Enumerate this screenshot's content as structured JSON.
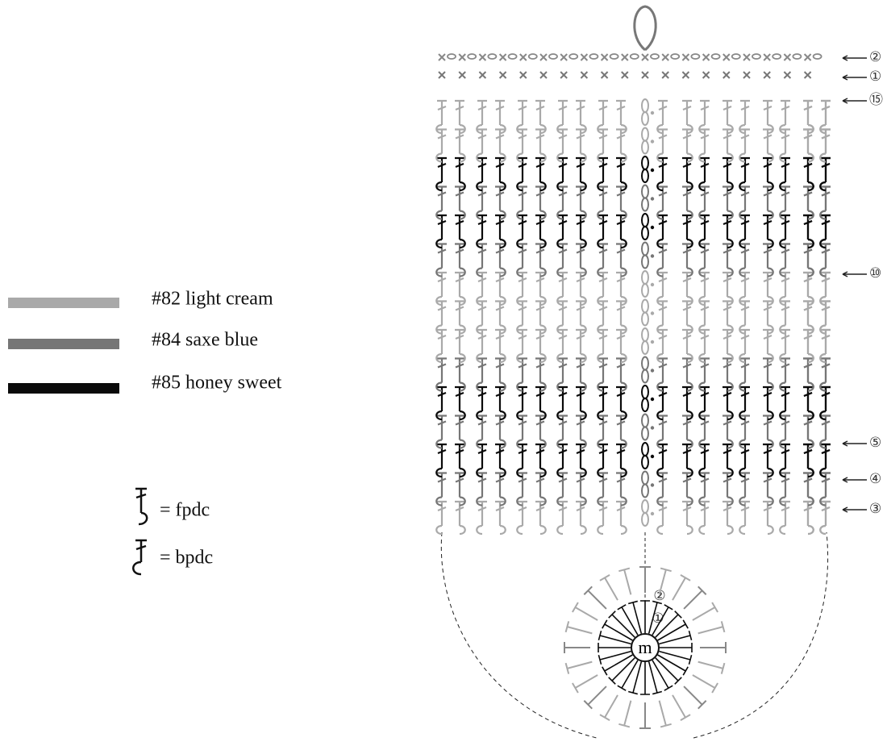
{
  "legend": {
    "yarns": [
      {
        "label": "#82 light cream",
        "color": "#a9a9a9"
      },
      {
        "label": "#84 saxe blue",
        "color": "#767676"
      },
      {
        "label": "#85 honey sweet",
        "color": "#0a0a0a"
      }
    ],
    "symbols": [
      {
        "label": "= fpdc"
      },
      {
        "label": "= bpdc"
      }
    ]
  },
  "row_markers": [
    {
      "label": "②"
    },
    {
      "label": "①"
    },
    {
      "label": "⑮"
    },
    {
      "label": "⑩"
    },
    {
      "label": "⑤"
    },
    {
      "label": "④"
    },
    {
      "label": "③"
    }
  ],
  "round_diagram": {
    "center": "m",
    "round_labels": [
      "②",
      "①"
    ]
  }
}
